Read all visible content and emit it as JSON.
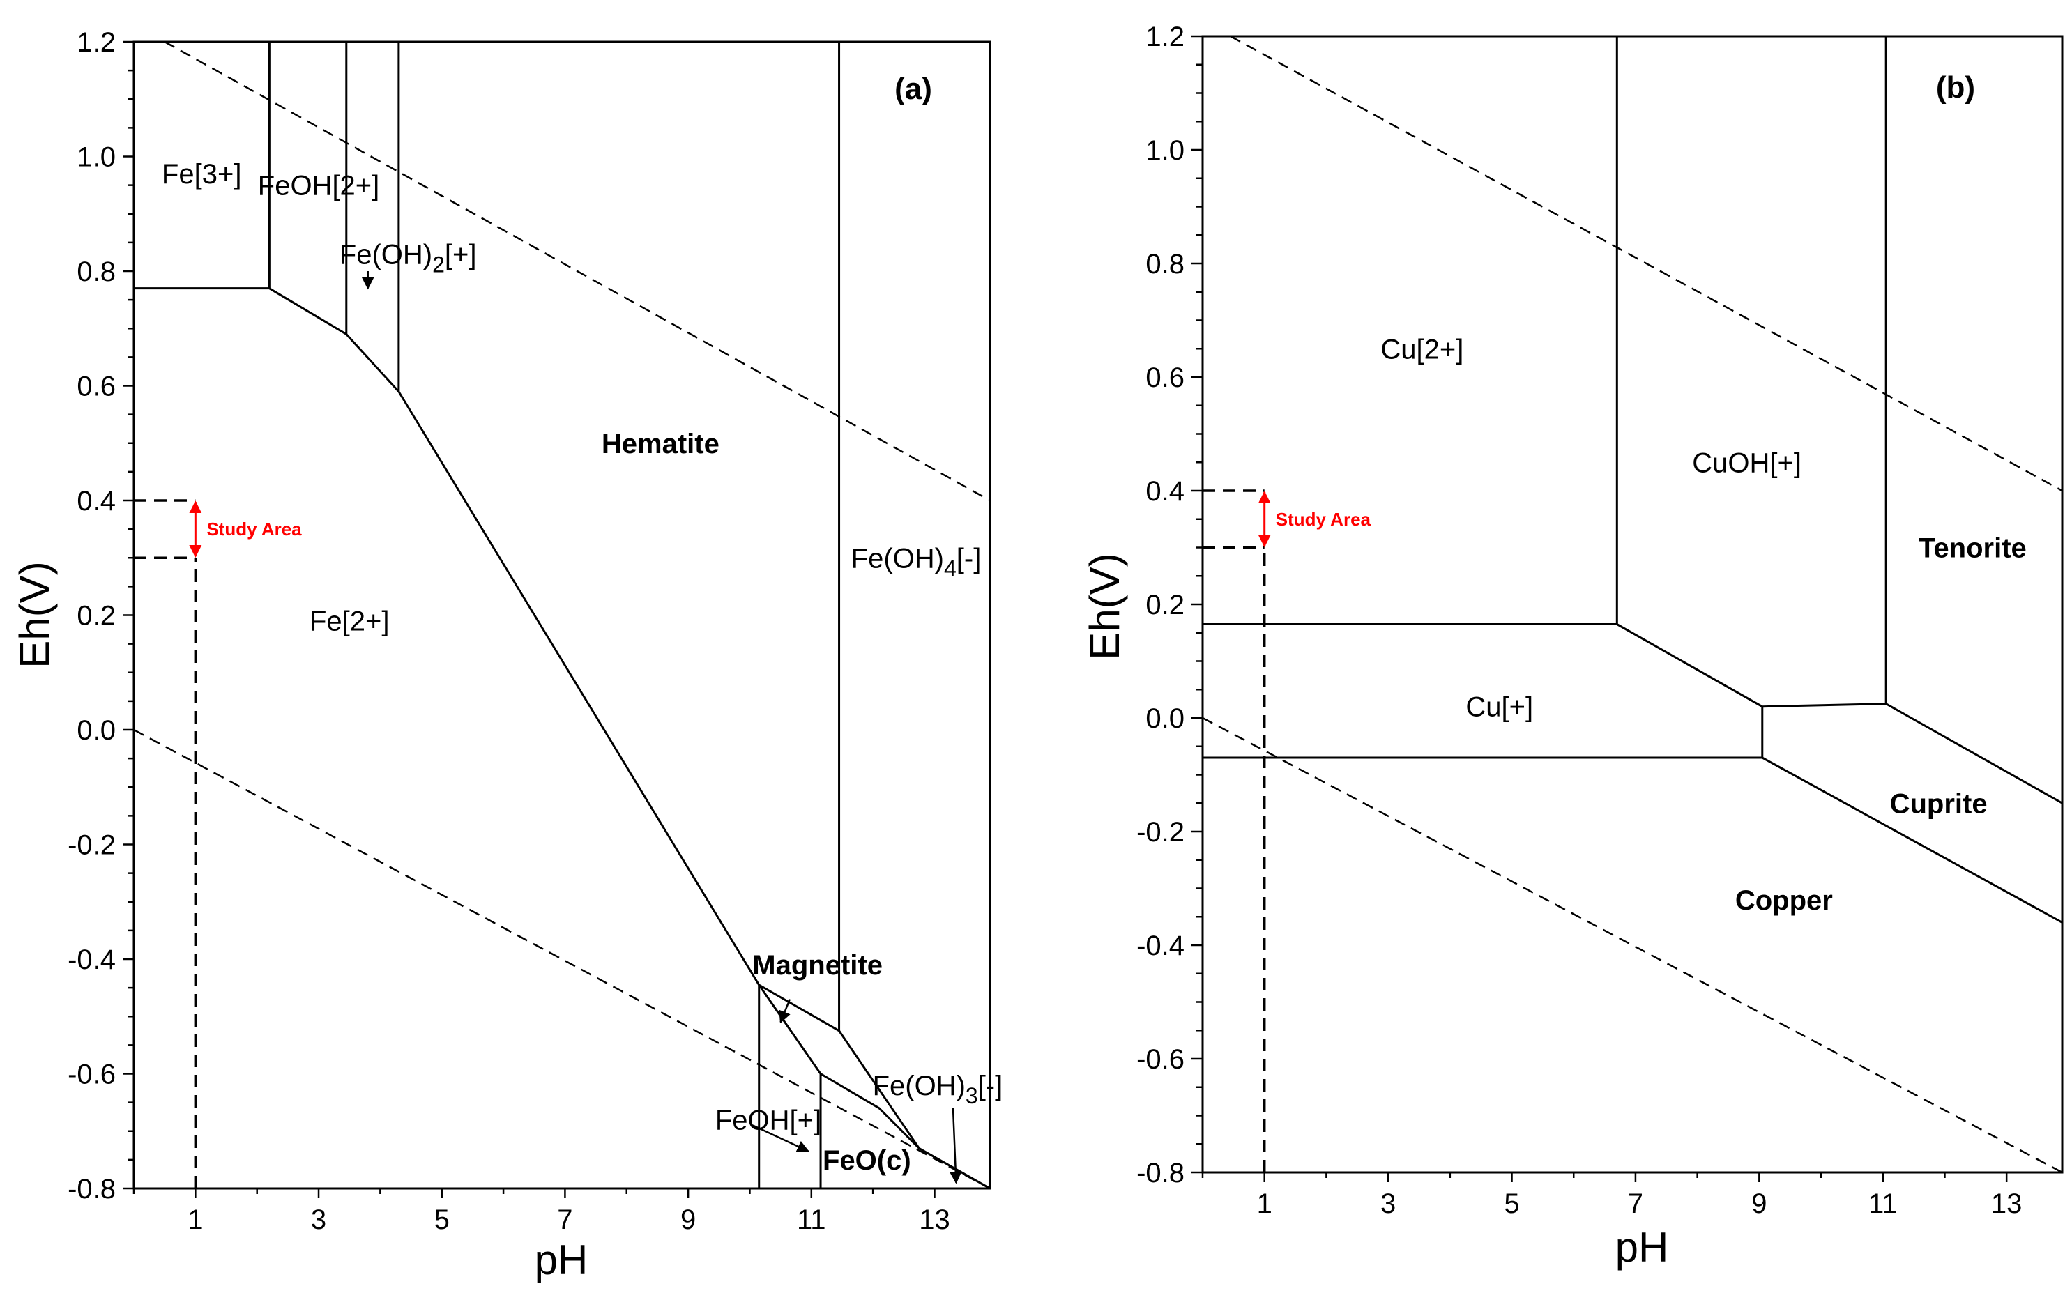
{
  "chart_data": [
    {
      "type": "line",
      "title": "",
      "panel_label": "(a)",
      "xlabel": "pH",
      "ylabel": "Eh(V)",
      "xlim": [
        0,
        13.9
      ],
      "ylim": [
        -0.8,
        1.2
      ],
      "x_ticks": [
        1,
        3,
        5,
        7,
        9,
        11,
        13
      ],
      "x_tick_labels": [
        "1",
        "3",
        "5",
        "7",
        "9",
        "11",
        "13"
      ],
      "y_ticks": [
        -0.8,
        -0.6,
        -0.4,
        -0.2,
        0.0,
        0.2,
        0.4,
        0.6,
        0.8,
        1.0,
        1.2
      ],
      "y_tick_labels": [
        "-0.8",
        "-0.6",
        "-0.4",
        "-0.2",
        "0.0",
        "0.2",
        "0.4",
        "0.6",
        "0.8",
        "1.0",
        "1.2"
      ],
      "grid": false,
      "boundaries": [
        [
          [
            0,
            0.77
          ],
          [
            2.2,
            0.77
          ],
          [
            3.45,
            0.69
          ],
          [
            4.3,
            0.59
          ],
          [
            10.15,
            -0.445
          ],
          [
            11.45,
            -0.525
          ],
          [
            12.75,
            -0.73
          ],
          [
            13.9,
            -0.8
          ]
        ],
        [
          [
            2.2,
            0.77
          ],
          [
            2.2,
            1.2
          ]
        ],
        [
          [
            3.45,
            0.69
          ],
          [
            3.45,
            1.2
          ]
        ],
        [
          [
            4.3,
            0.59
          ],
          [
            4.3,
            1.2
          ]
        ],
        [
          [
            11.45,
            -0.525
          ],
          [
            11.45,
            1.2
          ]
        ],
        [
          [
            10.15,
            -0.445
          ],
          [
            10.15,
            -0.8
          ]
        ],
        [
          [
            10.15,
            -0.445
          ],
          [
            11.15,
            -0.6
          ],
          [
            12.1,
            -0.66
          ],
          [
            12.75,
            -0.73
          ]
        ],
        [
          [
            11.15,
            -0.6
          ],
          [
            11.15,
            -0.8
          ]
        ]
      ],
      "water_lines": [
        [
          [
            0.5,
            1.2
          ],
          [
            13.9,
            0.4
          ]
        ],
        [
          [
            0,
            0.0
          ],
          [
            13.9,
            -0.8
          ]
        ]
      ],
      "study_area": {
        "label": "Study Area",
        "ph": 1,
        "eh_range": [
          0.3,
          0.4
        ]
      },
      "regions": [
        {
          "label": "Fe[3+]",
          "ph": 1.1,
          "eh": 0.97,
          "bold": false
        },
        {
          "label": "FeOH[2+]",
          "ph": 3.0,
          "eh": 0.95,
          "bold": false
        },
        {
          "label": "Fe(OH)",
          "sub": "2",
          "suffix": "[+]",
          "ph": 4.45,
          "eh": 0.83,
          "bold": false
        },
        {
          "label": "Hematite",
          "ph": 8.55,
          "eh": 0.5,
          "bold": true
        },
        {
          "label": "Fe[2+]",
          "ph": 3.5,
          "eh": 0.19,
          "bold": false
        },
        {
          "label": "Fe(OH)",
          "sub": "4",
          "suffix": "[-]",
          "ph": 12.7,
          "eh": 0.3,
          "bold": false
        },
        {
          "label": "Magnetite",
          "ph": 11.1,
          "eh": -0.41,
          "bold": true
        },
        {
          "label": "Fe(OH)",
          "sub": "3",
          "suffix": "[-]",
          "ph": 13.05,
          "eh": -0.62,
          "bold": false
        },
        {
          "label": "FeOH[+]",
          "ph": 10.3,
          "eh": -0.68,
          "bold": false
        },
        {
          "label": "FeO(c)",
          "ph": 11.9,
          "eh": -0.75,
          "bold": true
        }
      ],
      "arrows": [
        {
          "from": [
            3.8,
            0.8
          ],
          "to": [
            3.8,
            0.77
          ]
        },
        {
          "from": [
            10.65,
            -0.47
          ],
          "to": [
            10.5,
            -0.51
          ]
        },
        {
          "from": [
            10.05,
            -0.69
          ],
          "to": [
            10.95,
            -0.735
          ]
        },
        {
          "from": [
            13.3,
            -0.66
          ],
          "to": [
            13.35,
            -0.79
          ]
        }
      ]
    },
    {
      "type": "line",
      "title": "",
      "panel_label": "(b)",
      "xlabel": "pH",
      "ylabel": "Eh(V)",
      "xlim": [
        0,
        13.9
      ],
      "ylim": [
        -0.8,
        1.2
      ],
      "x_ticks": [
        1,
        3,
        5,
        7,
        9,
        11,
        13
      ],
      "x_tick_labels": [
        "1",
        "3",
        "5",
        "7",
        "9",
        "11",
        "13"
      ],
      "y_ticks": [
        -0.8,
        -0.6,
        -0.4,
        -0.2,
        0.0,
        0.2,
        0.4,
        0.6,
        0.8,
        1.0,
        1.2
      ],
      "y_tick_labels": [
        "-0.8",
        "-0.6",
        "-0.4",
        "-0.2",
        "0.0",
        "0.2",
        "0.4",
        "0.6",
        "0.8",
        "1.0",
        "1.2"
      ],
      "grid": false,
      "boundaries": [
        [
          [
            0,
            0.165
          ],
          [
            6.7,
            0.165
          ],
          [
            9.05,
            0.02
          ],
          [
            11.05,
            0.025
          ],
          [
            13.9,
            -0.15
          ]
        ],
        [
          [
            6.7,
            0.165
          ],
          [
            6.7,
            1.2
          ]
        ],
        [
          [
            11.05,
            0.025
          ],
          [
            11.05,
            1.2
          ]
        ],
        [
          [
            9.05,
            0.02
          ],
          [
            9.05,
            -0.07
          ]
        ],
        [
          [
            0,
            -0.07
          ],
          [
            9.05,
            -0.07
          ],
          [
            13.9,
            -0.36
          ]
        ]
      ],
      "water_lines": [
        [
          [
            0.45,
            1.2
          ],
          [
            13.9,
            0.4
          ]
        ],
        [
          [
            0,
            0.0
          ],
          [
            13.9,
            -0.8
          ]
        ]
      ],
      "study_area": {
        "label": "Study Area",
        "ph": 1,
        "eh_range": [
          0.3,
          0.4
        ]
      },
      "regions": [
        {
          "label": "Cu[2+]",
          "ph": 3.55,
          "eh": 0.65,
          "bold": false
        },
        {
          "label": "CuOH[+]",
          "ph": 8.8,
          "eh": 0.45,
          "bold": false
        },
        {
          "label": "Tenorite",
          "ph": 12.45,
          "eh": 0.3,
          "bold": true
        },
        {
          "label": "Cu[+]",
          "ph": 4.8,
          "eh": 0.02,
          "bold": false
        },
        {
          "label": "Cuprite",
          "ph": 11.9,
          "eh": -0.15,
          "bold": true
        },
        {
          "label": "Copper",
          "ph": 9.4,
          "eh": -0.32,
          "bold": true
        }
      ],
      "arrows": []
    }
  ]
}
